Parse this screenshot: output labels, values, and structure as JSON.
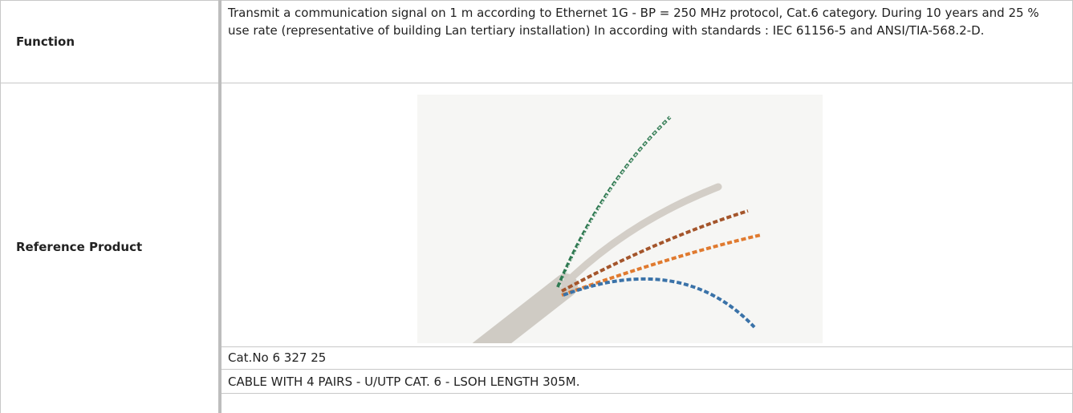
{
  "table": {
    "rows": [
      {
        "label": "Function",
        "text": "Transmit a communication signal on 1 m according to Ethernet 1G - BP = 250 MHz protocol, Cat.6 category. During 10 years and 25 % use rate (representative of building Lan tertiary installation) In according with standards : IEC 61156-5 and ANSI/TIA-568.2-D."
      },
      {
        "label": "Reference Product",
        "cat_no": "Cat.No 6 327 25",
        "description": "CABLE WITH 4 PAIRS - U/UTP CAT. 6 - LSOH LENGTH 305M."
      }
    ]
  }
}
